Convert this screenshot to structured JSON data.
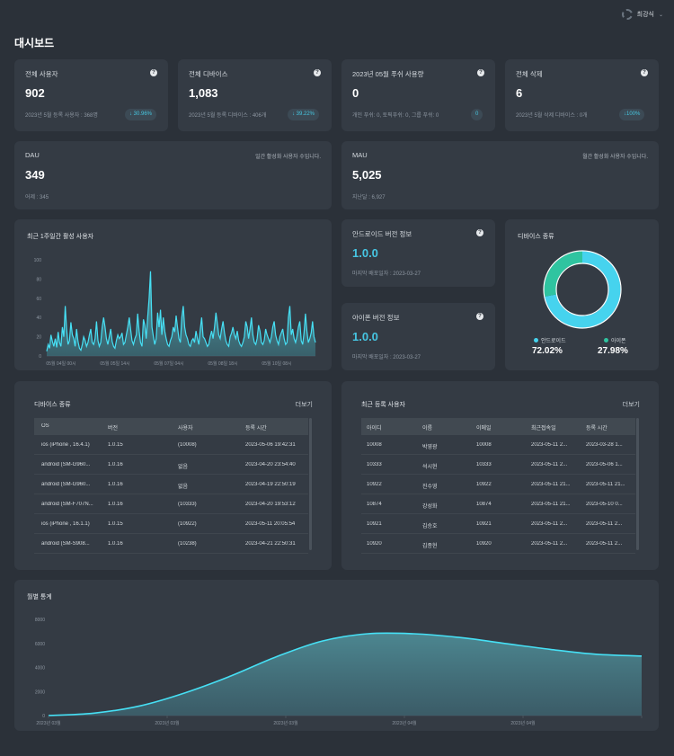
{
  "user": {
    "name": "최강식"
  },
  "page_title": "대시보드",
  "kpis": [
    {
      "title": "전체 사용자",
      "value": "902",
      "sub": "2023년 5월 등록 사용자 : 368명",
      "badge": "↓ 30.96%"
    },
    {
      "title": "전체 디바이스",
      "value": "1,083",
      "sub": "2023년 5월 등록 디바이스 : 406개",
      "badge": "↓ 39.22%"
    },
    {
      "title": "2023년 05월 푸쉬 사용량",
      "value": "0",
      "sub": "개인 푸쉬: 0, 토픽푸쉬: 0, 그룹 푸쉬: 0",
      "badge": "0"
    },
    {
      "title": "전체 삭제",
      "value": "6",
      "sub": "2023년 5월 삭제 디바이스 : 0개",
      "badge": "↓100%"
    }
  ],
  "dau": {
    "title": "DAU",
    "value": "349",
    "sub": "어제 : 345",
    "note": "일간 활성화 사용자 수입니다."
  },
  "mau": {
    "title": "MAU",
    "value": "5,025",
    "sub": "지난달 : 6,927",
    "note": "월간 활성화 사용자 수입니다."
  },
  "weekly_chart": {
    "title": "최근 1주일간 활성 사용자",
    "y_ticks": [
      "100",
      "80",
      "60",
      "40",
      "20",
      "0"
    ],
    "x_ticks": [
      "05월 04일 00시",
      "05월 05일 14시",
      "05월 07일 04시",
      "05월 08일 18시",
      "05월 10일 08시"
    ]
  },
  "android_version": {
    "title": "안드로이드 버전 정보",
    "value": "1.0.0",
    "sub": "마지막 배포일자 : 2023-03-27"
  },
  "ios_version": {
    "title": "아이폰 버전 정보",
    "value": "1.0.0",
    "sub": "마지막 배포일자 : 2023-03-27"
  },
  "device_types": {
    "title": "디바이스 종류",
    "items": [
      {
        "label": "안드로이드",
        "value": "72.02%"
      },
      {
        "label": "아이폰",
        "value": "27.98%"
      }
    ]
  },
  "device_table": {
    "title": "디바이스 종류",
    "more": "더보기",
    "columns": [
      "OS",
      "버전",
      "사용자",
      "등록 시간"
    ],
    "rows": [
      [
        "ios (iPhone , 16.4.1)",
        "1.0.15",
        "(10008)",
        "2023-05-06 19:42:31"
      ],
      [
        "android (SM-G960...",
        "1.0.16",
        "없음",
        "2023-04-20 23:54:40"
      ],
      [
        "android (SM-G960...",
        "1.0.16",
        "없음",
        "2023-04-19 22:50:19"
      ],
      [
        "android (SM-F707N...",
        "1.0.16",
        "(10333)",
        "2023-04-20 19:53:12"
      ],
      [
        "ios (iPhone , 16.1.1)",
        "1.0.15",
        "(10922)",
        "2023-05-11 20:05:54"
      ],
      [
        "android (SM-S908...",
        "1.0.16",
        "(10238)",
        "2023-04-21 22:50:31"
      ]
    ]
  },
  "user_table": {
    "title": "최근 등록 사용자",
    "more": "더보기",
    "columns": [
      "아이디",
      "이름",
      "이메일",
      "최근접속일",
      "등록 시간"
    ],
    "rows": [
      [
        "10008",
        "박영광",
        "10008",
        "2023-05-11 2...",
        "2023-03-28 1..."
      ],
      [
        "10333",
        "석시현",
        "10333",
        "2023-05-11 2...",
        "2023-05-06 1..."
      ],
      [
        "10922",
        "진수영",
        "10922",
        "2023-05-11 21...",
        "2023-05-11 21..."
      ],
      [
        "10874",
        "강성화",
        "10874",
        "2023-05-11 21...",
        "2023-05-10 0..."
      ],
      [
        "10921",
        "김승호",
        "10921",
        "2023-05-11 2...",
        "2023-05-11 2..."
      ],
      [
        "10920",
        "김종현",
        "10920",
        "2023-05-11 2...",
        "2023-05-11 2..."
      ]
    ]
  },
  "monthly_chart": {
    "title": "월별 통계",
    "y_ticks": [
      "8000",
      "6000",
      "4000",
      "2000",
      "0"
    ],
    "x_ticks": [
      "2023년 03월",
      "2023년 03월",
      "2023년 03월",
      "2023년 04월",
      "2023년 04월"
    ]
  },
  "colors": {
    "accent": "#46d3ee",
    "teal": "#2fc4a0",
    "card": "#343b44",
    "bg": "#2b3139"
  },
  "chart_data": [
    {
      "type": "area",
      "title": "최근 1주일간 활성 사용자",
      "ylim": [
        0,
        100
      ],
      "x_labels": [
        "05월 04일 00시",
        "05월 05일 14시",
        "05월 07일 04시",
        "05월 08일 18시",
        "05월 10일 08시"
      ],
      "values": [
        5,
        12,
        8,
        22,
        15,
        10,
        18,
        9,
        25,
        14,
        10,
        30,
        20,
        52,
        28,
        12,
        16,
        35,
        22,
        18,
        10,
        28,
        15,
        8,
        6,
        12,
        20,
        16,
        10,
        14,
        22,
        28,
        14,
        12,
        18,
        36,
        16,
        10,
        14,
        30,
        40,
        30,
        18,
        12,
        20,
        28,
        15,
        10,
        8,
        16,
        22,
        18,
        20,
        24,
        12,
        14,
        22,
        30,
        40,
        28,
        16,
        12,
        18,
        22,
        44,
        26,
        14,
        10,
        38,
        32,
        18,
        40,
        60,
        88,
        30,
        20,
        12,
        18,
        45,
        30,
        48,
        22,
        40,
        26,
        18,
        12,
        10,
        16,
        20,
        30,
        25,
        42,
        30,
        18,
        14,
        40,
        52,
        30,
        22,
        18,
        12,
        10,
        16,
        18,
        14,
        26,
        18,
        12,
        28,
        40,
        20,
        18,
        14,
        10,
        12,
        20,
        26,
        18,
        30,
        45,
        34,
        22,
        18,
        28,
        36,
        24,
        16,
        12,
        10,
        20,
        24,
        30,
        22,
        18,
        26,
        16,
        12,
        10,
        14,
        20,
        36,
        30,
        18,
        28,
        40,
        22,
        14,
        12,
        18,
        32,
        26,
        14,
        12,
        16,
        28,
        22,
        18,
        14,
        20,
        30,
        36,
        22,
        16,
        12,
        20,
        24,
        28,
        18,
        12,
        14,
        40,
        52,
        22,
        28,
        18,
        14,
        20,
        30,
        36,
        16,
        12,
        24,
        44,
        26,
        14,
        18,
        24,
        36,
        20,
        14
      ]
    },
    {
      "type": "area",
      "title": "월별 통계",
      "ylim": [
        0,
        8000
      ],
      "x_labels": [
        "2023년 03월",
        "2023년 03월",
        "2023년 03월",
        "2023년 04월",
        "2023년 04월"
      ],
      "values": [
        0,
        200,
        800,
        1900,
        3300,
        4900,
        6200,
        6800,
        6800,
        6500,
        6000,
        5500,
        5100,
        4950
      ]
    },
    {
      "type": "pie",
      "title": "디바이스 종류",
      "categories": [
        "안드로이드",
        "아이폰"
      ],
      "values": [
        72.02,
        27.98
      ]
    }
  ]
}
